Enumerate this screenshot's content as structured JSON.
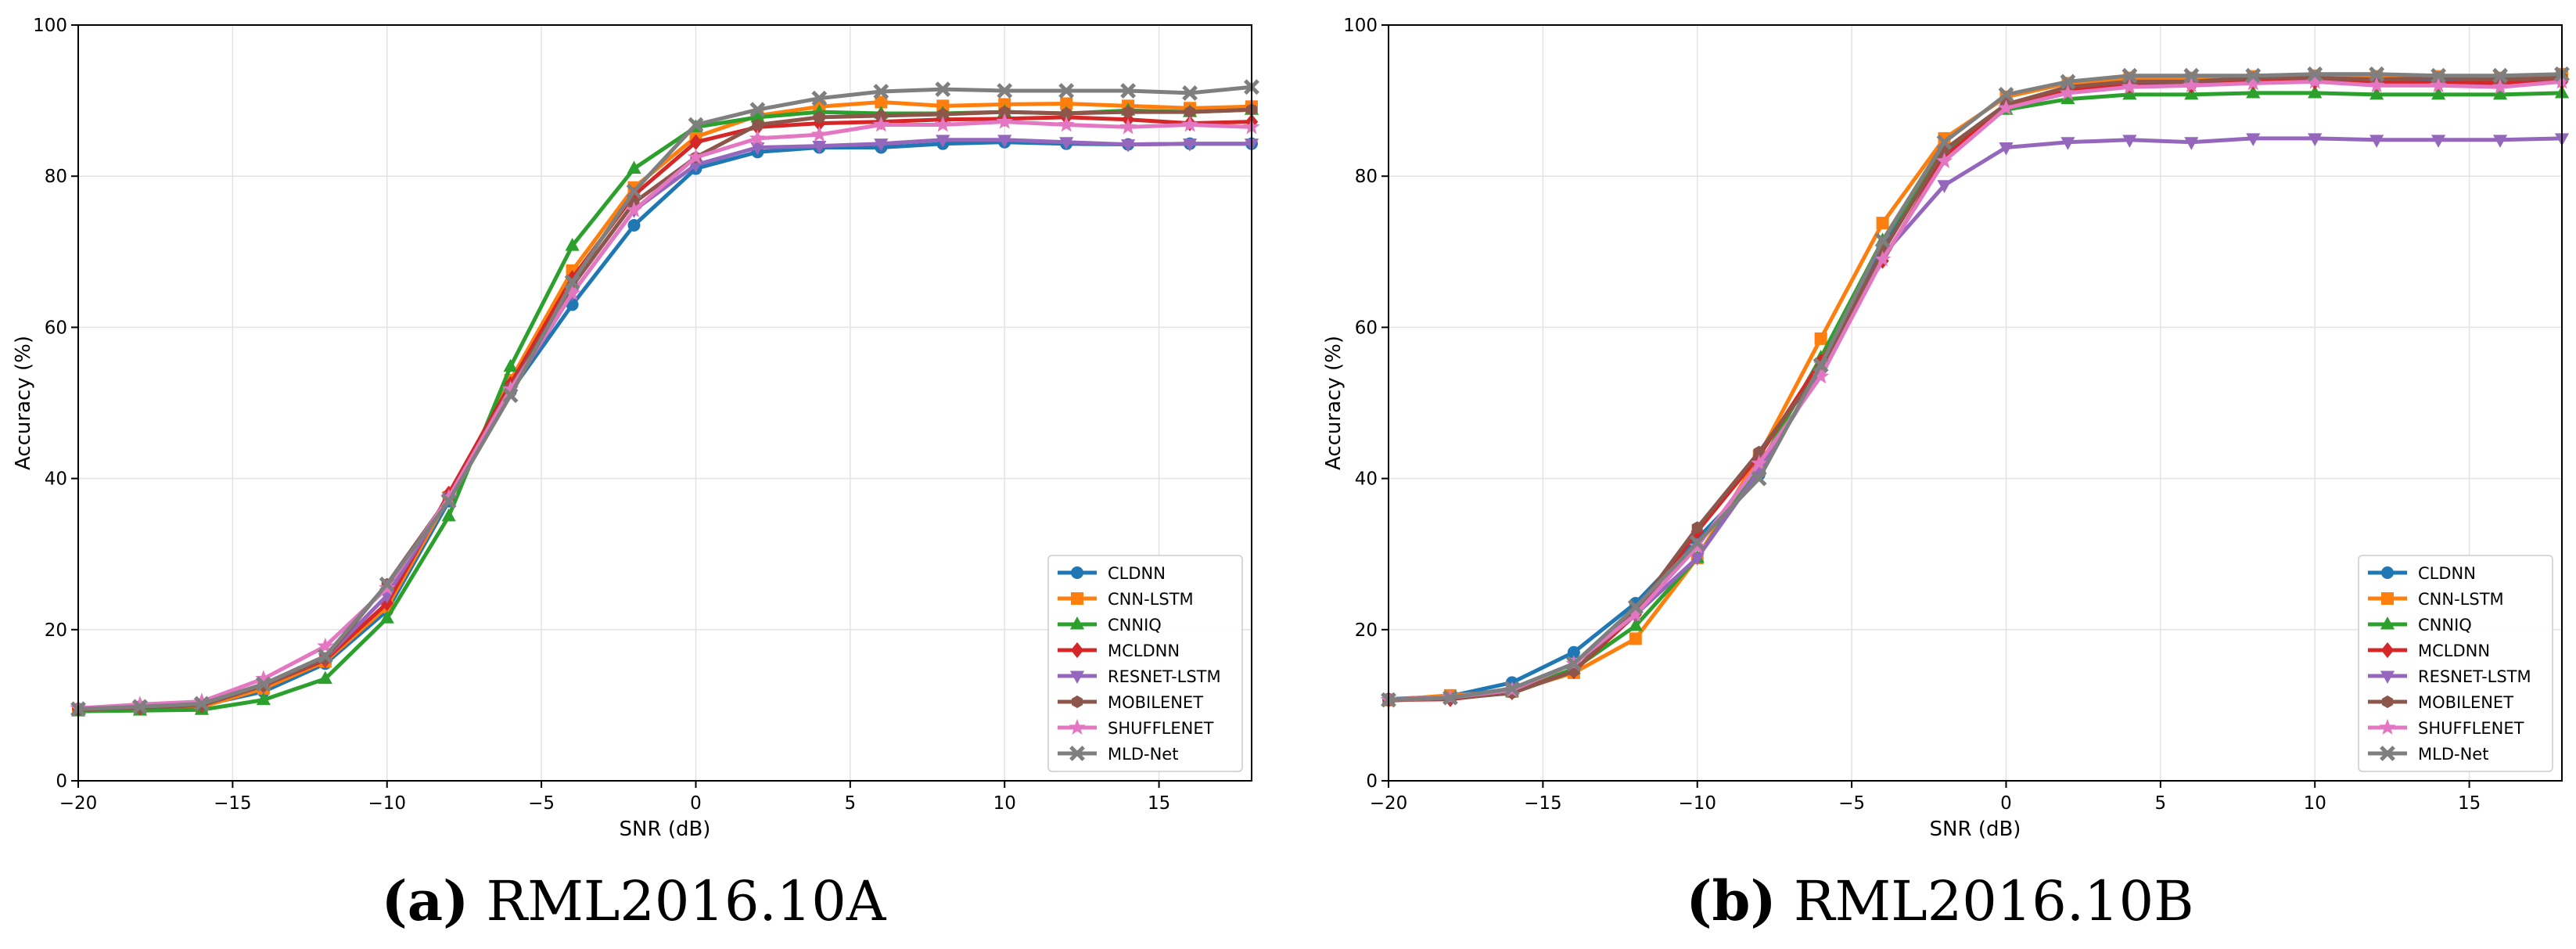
{
  "colors": {
    "CLDNN": "#1f77b4",
    "CNN-LSTM": "#ff7f0e",
    "CNNIQ": "#2ca02c",
    "MCLDNN": "#d62728",
    "RESNET-LSTM": "#9467bd",
    "MOBILENET": "#8c564b",
    "SHUFFLENET": "#e377c2",
    "MLD-Net": "#7f7f7f"
  },
  "markers": {
    "CLDNN": "circle",
    "CNN-LSTM": "square",
    "CNNIQ": "triangle-up",
    "MCLDNN": "diamond",
    "RESNET-LSTM": "triangle-down",
    "MOBILENET": "hexagon",
    "SHUFFLENET": "star",
    "MLD-Net": "x"
  },
  "captions": [
    {
      "label": "(a)",
      "text": " RML2016.10A"
    },
    {
      "label": "(b)",
      "text": " RML2016.10B"
    }
  ],
  "chart_data": [
    {
      "type": "line",
      "title": "",
      "xlabel": "SNR (dB)",
      "ylabel": "Accuracy (%)",
      "xlim": [
        -20,
        18
      ],
      "ylim": [
        0,
        100
      ],
      "xticks": [
        -20,
        -15,
        -10,
        -5,
        0,
        5,
        10,
        15
      ],
      "yticks": [
        0,
        20,
        40,
        60,
        80,
        100
      ],
      "grid": true,
      "legend": "lower-right",
      "x": [
        -20,
        -18,
        -16,
        -14,
        -12,
        -10,
        -8,
        -6,
        -4,
        -2,
        0,
        2,
        4,
        6,
        8,
        10,
        12,
        14,
        16,
        18
      ],
      "series": [
        {
          "name": "CLDNN",
          "values": [
            9.5,
            9.8,
            10.0,
            11.8,
            15.5,
            22.5,
            37.0,
            51.5,
            63.0,
            73.5,
            81.0,
            83.2,
            83.8,
            83.8,
            84.3,
            84.5,
            84.3,
            84.2,
            84.3,
            84.3
          ]
        },
        {
          "name": "CNN-LSTM",
          "values": [
            9.4,
            9.6,
            9.8,
            12.2,
            15.8,
            23.0,
            37.5,
            53.0,
            67.5,
            78.5,
            85.2,
            88.0,
            89.2,
            89.8,
            89.3,
            89.5,
            89.6,
            89.3,
            89.0,
            89.2
          ]
        },
        {
          "name": "CNNIQ",
          "values": [
            9.2,
            9.3,
            9.4,
            10.7,
            13.5,
            21.5,
            35.0,
            54.8,
            70.8,
            81.0,
            86.5,
            87.8,
            88.5,
            88.3,
            88.3,
            88.5,
            88.3,
            88.7,
            88.5,
            88.8
          ]
        },
        {
          "name": "MCLDNN",
          "values": [
            9.5,
            9.7,
            10.0,
            12.6,
            16.0,
            23.5,
            38.0,
            52.5,
            66.5,
            77.5,
            84.5,
            86.5,
            87.0,
            87.2,
            87.5,
            87.6,
            87.8,
            87.5,
            87.0,
            87.2
          ]
        },
        {
          "name": "RESNET-LSTM",
          "values": [
            9.5,
            9.9,
            10.2,
            12.6,
            16.2,
            24.5,
            37.5,
            51.5,
            64.5,
            75.5,
            81.5,
            83.8,
            84.0,
            84.3,
            84.8,
            84.8,
            84.5,
            84.2,
            84.3,
            84.3
          ]
        },
        {
          "name": "MOBILENET",
          "values": [
            9.4,
            9.7,
            10.0,
            12.6,
            16.2,
            26.0,
            37.5,
            52.0,
            65.5,
            76.5,
            82.5,
            86.8,
            87.8,
            88.0,
            88.2,
            88.5,
            88.3,
            88.5,
            88.5,
            88.8
          ]
        },
        {
          "name": "SHUFFLENET",
          "values": [
            9.6,
            10.1,
            10.5,
            13.5,
            17.8,
            25.5,
            37.5,
            51.8,
            64.5,
            75.5,
            82.5,
            85.0,
            85.5,
            86.8,
            86.8,
            87.2,
            86.8,
            86.5,
            86.8,
            86.5
          ]
        },
        {
          "name": "MLD-Net",
          "values": [
            9.5,
            9.8,
            10.2,
            12.8,
            16.5,
            26.0,
            37.0,
            51.0,
            66.0,
            78.0,
            86.8,
            88.8,
            90.3,
            91.2,
            91.5,
            91.3,
            91.3,
            91.3,
            91.0,
            91.8
          ]
        }
      ]
    },
    {
      "type": "line",
      "title": "",
      "xlabel": "SNR (dB)",
      "ylabel": "Accuracy (%)",
      "xlim": [
        -20,
        18
      ],
      "ylim": [
        0,
        100
      ],
      "xticks": [
        -20,
        -15,
        -10,
        -5,
        0,
        5,
        10,
        15
      ],
      "yticks": [
        0,
        20,
        40,
        60,
        80,
        100
      ],
      "grid": true,
      "legend": "lower-right",
      "x": [
        -20,
        -18,
        -16,
        -14,
        -12,
        -10,
        -8,
        -6,
        -4,
        -2,
        0,
        2,
        4,
        6,
        8,
        10,
        12,
        14,
        16,
        18
      ],
      "series": [
        {
          "name": "CLDNN",
          "values": [
            10.8,
            11.2,
            13.0,
            17.0,
            23.5,
            32.0,
            40.5,
            54.5,
            70.5,
            83.0,
            89.5,
            91.5,
            92.3,
            92.5,
            92.8,
            93.0,
            92.8,
            92.8,
            92.5,
            92.8
          ]
        },
        {
          "name": "CNN-LSTM",
          "values": [
            10.7,
            11.3,
            11.8,
            14.3,
            18.8,
            29.5,
            43.0,
            58.5,
            73.8,
            85.0,
            90.5,
            92.3,
            93.0,
            93.0,
            93.2,
            93.3,
            93.2,
            93.2,
            93.0,
            93.5
          ]
        },
        {
          "name": "CNNIQ",
          "values": [
            10.6,
            11.0,
            11.8,
            14.8,
            20.5,
            29.5,
            41.5,
            56.0,
            71.5,
            83.5,
            88.8,
            90.2,
            90.8,
            90.8,
            91.0,
            91.0,
            90.8,
            90.8,
            90.8,
            91.0
          ]
        },
        {
          "name": "MCLDNN",
          "values": [
            10.7,
            10.8,
            11.7,
            14.5,
            22.0,
            33.0,
            43.0,
            55.5,
            68.8,
            82.5,
            89.5,
            91.5,
            92.0,
            92.0,
            92.5,
            92.5,
            92.3,
            92.3,
            92.3,
            92.5
          ]
        },
        {
          "name": "RESNET-LSTM",
          "values": [
            10.8,
            11.0,
            12.2,
            15.5,
            22.0,
            29.5,
            41.0,
            54.0,
            69.5,
            78.8,
            83.8,
            84.5,
            84.8,
            84.5,
            85.0,
            85.0,
            84.8,
            84.8,
            84.8,
            85.0
          ]
        },
        {
          "name": "MOBILENET",
          "values": [
            10.7,
            10.9,
            11.6,
            14.5,
            22.5,
            33.5,
            43.5,
            54.5,
            70.0,
            83.5,
            89.5,
            91.8,
            92.5,
            92.5,
            93.0,
            93.0,
            92.8,
            93.0,
            92.8,
            93.0
          ]
        },
        {
          "name": "SHUFFLENET",
          "values": [
            10.7,
            11.0,
            12.0,
            15.5,
            22.0,
            31.0,
            42.0,
            53.5,
            69.0,
            82.0,
            89.0,
            91.0,
            91.8,
            92.0,
            92.3,
            92.5,
            92.0,
            92.0,
            91.8,
            92.5
          ]
        },
        {
          "name": "MLD-Net",
          "values": [
            10.7,
            11.0,
            12.2,
            15.5,
            23.0,
            31.5,
            40.0,
            55.0,
            71.5,
            84.5,
            90.8,
            92.5,
            93.3,
            93.3,
            93.3,
            93.5,
            93.5,
            93.3,
            93.3,
            93.5
          ]
        }
      ]
    }
  ]
}
